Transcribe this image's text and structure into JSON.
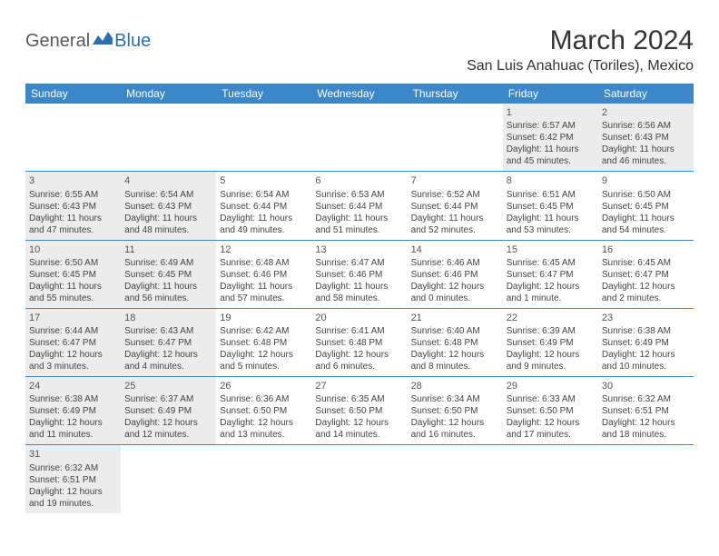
{
  "logo": {
    "part1": "General",
    "part2": "Blue"
  },
  "title": "March 2024",
  "location": "San Luis Anahuac (Toriles), Mexico",
  "colors": {
    "header_bg": "#3b87c8",
    "header_text": "#ffffff",
    "shade_bg": "#ececec",
    "border": "#3b87c8",
    "logo_gray": "#5a5a5a",
    "logo_blue": "#2b6fb0"
  },
  "day_names": [
    "Sunday",
    "Monday",
    "Tuesday",
    "Wednesday",
    "Thursday",
    "Friday",
    "Saturday"
  ],
  "weeks": [
    [
      {
        "day": "",
        "lines": []
      },
      {
        "day": "",
        "lines": []
      },
      {
        "day": "",
        "lines": []
      },
      {
        "day": "",
        "lines": []
      },
      {
        "day": "",
        "lines": []
      },
      {
        "day": "1",
        "shade": true,
        "lines": [
          "Sunrise: 6:57 AM",
          "Sunset: 6:42 PM",
          "Daylight: 11 hours and 45 minutes."
        ]
      },
      {
        "day": "2",
        "shade": true,
        "lines": [
          "Sunrise: 6:56 AM",
          "Sunset: 6:43 PM",
          "Daylight: 11 hours and 46 minutes."
        ]
      }
    ],
    [
      {
        "day": "3",
        "shade": true,
        "lines": [
          "Sunrise: 6:55 AM",
          "Sunset: 6:43 PM",
          "Daylight: 11 hours and 47 minutes."
        ]
      },
      {
        "day": "4",
        "shade": true,
        "lines": [
          "Sunrise: 6:54 AM",
          "Sunset: 6:43 PM",
          "Daylight: 11 hours and 48 minutes."
        ]
      },
      {
        "day": "5",
        "lines": [
          "Sunrise: 6:54 AM",
          "Sunset: 6:44 PM",
          "Daylight: 11 hours and 49 minutes."
        ]
      },
      {
        "day": "6",
        "lines": [
          "Sunrise: 6:53 AM",
          "Sunset: 6:44 PM",
          "Daylight: 11 hours and 51 minutes."
        ]
      },
      {
        "day": "7",
        "lines": [
          "Sunrise: 6:52 AM",
          "Sunset: 6:44 PM",
          "Daylight: 11 hours and 52 minutes."
        ]
      },
      {
        "day": "8",
        "lines": [
          "Sunrise: 6:51 AM",
          "Sunset: 6:45 PM",
          "Daylight: 11 hours and 53 minutes."
        ]
      },
      {
        "day": "9",
        "lines": [
          "Sunrise: 6:50 AM",
          "Sunset: 6:45 PM",
          "Daylight: 11 hours and 54 minutes."
        ]
      }
    ],
    [
      {
        "day": "10",
        "shade": true,
        "lines": [
          "Sunrise: 6:50 AM",
          "Sunset: 6:45 PM",
          "Daylight: 11 hours and 55 minutes."
        ]
      },
      {
        "day": "11",
        "shade": true,
        "lines": [
          "Sunrise: 6:49 AM",
          "Sunset: 6:45 PM",
          "Daylight: 11 hours and 56 minutes."
        ]
      },
      {
        "day": "12",
        "lines": [
          "Sunrise: 6:48 AM",
          "Sunset: 6:46 PM",
          "Daylight: 11 hours and 57 minutes."
        ]
      },
      {
        "day": "13",
        "lines": [
          "Sunrise: 6:47 AM",
          "Sunset: 6:46 PM",
          "Daylight: 11 hours and 58 minutes."
        ]
      },
      {
        "day": "14",
        "lines": [
          "Sunrise: 6:46 AM",
          "Sunset: 6:46 PM",
          "Daylight: 12 hours and 0 minutes."
        ]
      },
      {
        "day": "15",
        "lines": [
          "Sunrise: 6:45 AM",
          "Sunset: 6:47 PM",
          "Daylight: 12 hours and 1 minute."
        ]
      },
      {
        "day": "16",
        "lines": [
          "Sunrise: 6:45 AM",
          "Sunset: 6:47 PM",
          "Daylight: 12 hours and 2 minutes."
        ]
      }
    ],
    [
      {
        "day": "17",
        "shade": true,
        "lines": [
          "Sunrise: 6:44 AM",
          "Sunset: 6:47 PM",
          "Daylight: 12 hours and 3 minutes."
        ]
      },
      {
        "day": "18",
        "shade": true,
        "lines": [
          "Sunrise: 6:43 AM",
          "Sunset: 6:47 PM",
          "Daylight: 12 hours and 4 minutes."
        ]
      },
      {
        "day": "19",
        "lines": [
          "Sunrise: 6:42 AM",
          "Sunset: 6:48 PM",
          "Daylight: 12 hours and 5 minutes."
        ]
      },
      {
        "day": "20",
        "lines": [
          "Sunrise: 6:41 AM",
          "Sunset: 6:48 PM",
          "Daylight: 12 hours and 6 minutes."
        ]
      },
      {
        "day": "21",
        "lines": [
          "Sunrise: 6:40 AM",
          "Sunset: 6:48 PM",
          "Daylight: 12 hours and 8 minutes."
        ]
      },
      {
        "day": "22",
        "lines": [
          "Sunrise: 6:39 AM",
          "Sunset: 6:49 PM",
          "Daylight: 12 hours and 9 minutes."
        ]
      },
      {
        "day": "23",
        "lines": [
          "Sunrise: 6:38 AM",
          "Sunset: 6:49 PM",
          "Daylight: 12 hours and 10 minutes."
        ]
      }
    ],
    [
      {
        "day": "24",
        "shade": true,
        "lines": [
          "Sunrise: 6:38 AM",
          "Sunset: 6:49 PM",
          "Daylight: 12 hours and 11 minutes."
        ]
      },
      {
        "day": "25",
        "shade": true,
        "lines": [
          "Sunrise: 6:37 AM",
          "Sunset: 6:49 PM",
          "Daylight: 12 hours and 12 minutes."
        ]
      },
      {
        "day": "26",
        "lines": [
          "Sunrise: 6:36 AM",
          "Sunset: 6:50 PM",
          "Daylight: 12 hours and 13 minutes."
        ]
      },
      {
        "day": "27",
        "lines": [
          "Sunrise: 6:35 AM",
          "Sunset: 6:50 PM",
          "Daylight: 12 hours and 14 minutes."
        ]
      },
      {
        "day": "28",
        "lines": [
          "Sunrise: 6:34 AM",
          "Sunset: 6:50 PM",
          "Daylight: 12 hours and 16 minutes."
        ]
      },
      {
        "day": "29",
        "lines": [
          "Sunrise: 6:33 AM",
          "Sunset: 6:50 PM",
          "Daylight: 12 hours and 17 minutes."
        ]
      },
      {
        "day": "30",
        "lines": [
          "Sunrise: 6:32 AM",
          "Sunset: 6:51 PM",
          "Daylight: 12 hours and 18 minutes."
        ]
      }
    ],
    [
      {
        "day": "31",
        "shade": true,
        "lines": [
          "Sunrise: 6:32 AM",
          "Sunset: 6:51 PM",
          "Daylight: 12 hours and 19 minutes."
        ]
      },
      {
        "day": "",
        "lines": []
      },
      {
        "day": "",
        "lines": []
      },
      {
        "day": "",
        "lines": []
      },
      {
        "day": "",
        "lines": []
      },
      {
        "day": "",
        "lines": []
      },
      {
        "day": "",
        "lines": []
      }
    ]
  ]
}
